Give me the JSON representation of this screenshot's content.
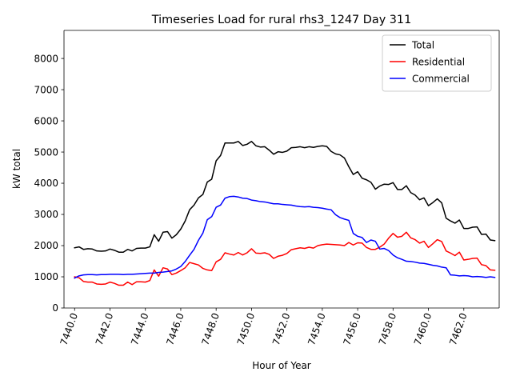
{
  "chart_data": {
    "type": "line",
    "title": "Timeseries Load for rural rhs3_1247  Day 311",
    "xlabel": "Hour of Year",
    "ylabel": "kW total",
    "xlim": [
      7439.4,
      7464.0
    ],
    "ylim": [
      0,
      8900
    ],
    "x_ticks": [
      7440,
      7442,
      7444,
      7446,
      7448,
      7450,
      7452,
      7454,
      7456,
      7458,
      7460,
      7462
    ],
    "x_tick_labels": [
      "7440.0",
      "7442.0",
      "7444.0",
      "7446.0",
      "7448.0",
      "7450.0",
      "7452.0",
      "7454.0",
      "7456.0",
      "7458.0",
      "7460.0",
      "7462.0"
    ],
    "y_ticks": [
      0,
      1000,
      2000,
      3000,
      4000,
      5000,
      6000,
      7000,
      8000
    ],
    "y_tick_labels": [
      "0",
      "1000",
      "2000",
      "3000",
      "4000",
      "5000",
      "6000",
      "7000",
      "8000"
    ],
    "grid": false,
    "legend_position": "top-right",
    "x_start": 7440.0,
    "x_step": 0.25,
    "series": [
      {
        "name": "Total",
        "color": "#000000",
        "values": [
          1930,
          1960,
          1880,
          1900,
          1890,
          1830,
          1820,
          1830,
          1890,
          1850,
          1790,
          1790,
          1880,
          1830,
          1910,
          1920,
          1920,
          1960,
          2350,
          2140,
          2430,
          2450,
          2240,
          2350,
          2530,
          2790,
          3150,
          3300,
          3530,
          3640,
          4040,
          4130,
          4720,
          4890,
          5290,
          5290,
          5290,
          5340,
          5210,
          5250,
          5340,
          5200,
          5160,
          5170,
          5060,
          4930,
          5010,
          4990,
          5030,
          5140,
          5150,
          5170,
          5140,
          5170,
          5150,
          5180,
          5200,
          5180,
          5020,
          4940,
          4910,
          4810,
          4530,
          4280,
          4370,
          4160,
          4110,
          4030,
          3810,
          3910,
          3970,
          3960,
          4020,
          3800,
          3800,
          3920,
          3700,
          3620,
          3470,
          3530,
          3280,
          3380,
          3500,
          3370,
          2880,
          2790,
          2720,
          2820,
          2550,
          2550,
          2590,
          2600,
          2360,
          2370,
          2180,
          2160
        ]
      },
      {
        "name": "Residential",
        "color": "#ff0000",
        "values": [
          1000,
          970,
          850,
          830,
          830,
          770,
          760,
          770,
          830,
          790,
          730,
          730,
          830,
          750,
          840,
          840,
          830,
          880,
          1220,
          1020,
          1290,
          1250,
          1070,
          1120,
          1200,
          1290,
          1460,
          1420,
          1380,
          1270,
          1220,
          1200,
          1480,
          1560,
          1770,
          1730,
          1700,
          1780,
          1700,
          1770,
          1900,
          1760,
          1750,
          1770,
          1720,
          1590,
          1660,
          1690,
          1750,
          1870,
          1900,
          1930,
          1910,
          1950,
          1920,
          2000,
          2030,
          2050,
          2040,
          2030,
          2020,
          2000,
          2100,
          2020,
          2090,
          2080,
          1940,
          1880,
          1880,
          1950,
          2050,
          2240,
          2390,
          2270,
          2300,
          2430,
          2250,
          2190,
          2080,
          2140,
          1940,
          2060,
          2190,
          2130,
          1830,
          1760,
          1680,
          1790,
          1540,
          1560,
          1590,
          1600,
          1390,
          1360,
          1220,
          1210
        ]
      },
      {
        "name": "Commercial",
        "color": "#0000ff",
        "values": [
          960,
          1030,
          1060,
          1070,
          1070,
          1060,
          1070,
          1070,
          1080,
          1080,
          1080,
          1070,
          1080,
          1080,
          1090,
          1100,
          1110,
          1120,
          1120,
          1140,
          1150,
          1170,
          1190,
          1250,
          1330,
          1490,
          1690,
          1880,
          2170,
          2400,
          2830,
          2930,
          3230,
          3300,
          3520,
          3570,
          3580,
          3560,
          3520,
          3510,
          3460,
          3440,
          3410,
          3400,
          3370,
          3340,
          3340,
          3320,
          3310,
          3300,
          3270,
          3250,
          3240,
          3250,
          3230,
          3220,
          3200,
          3170,
          3150,
          2990,
          2900,
          2850,
          2810,
          2390,
          2300,
          2260,
          2100,
          2180,
          2140,
          1890,
          1910,
          1840,
          1700,
          1610,
          1560,
          1500,
          1490,
          1470,
          1440,
          1430,
          1400,
          1370,
          1350,
          1310,
          1290,
          1060,
          1050,
          1030,
          1040,
          1030,
          1000,
          1010,
          1000,
          980,
          1000,
          980
        ]
      }
    ]
  }
}
